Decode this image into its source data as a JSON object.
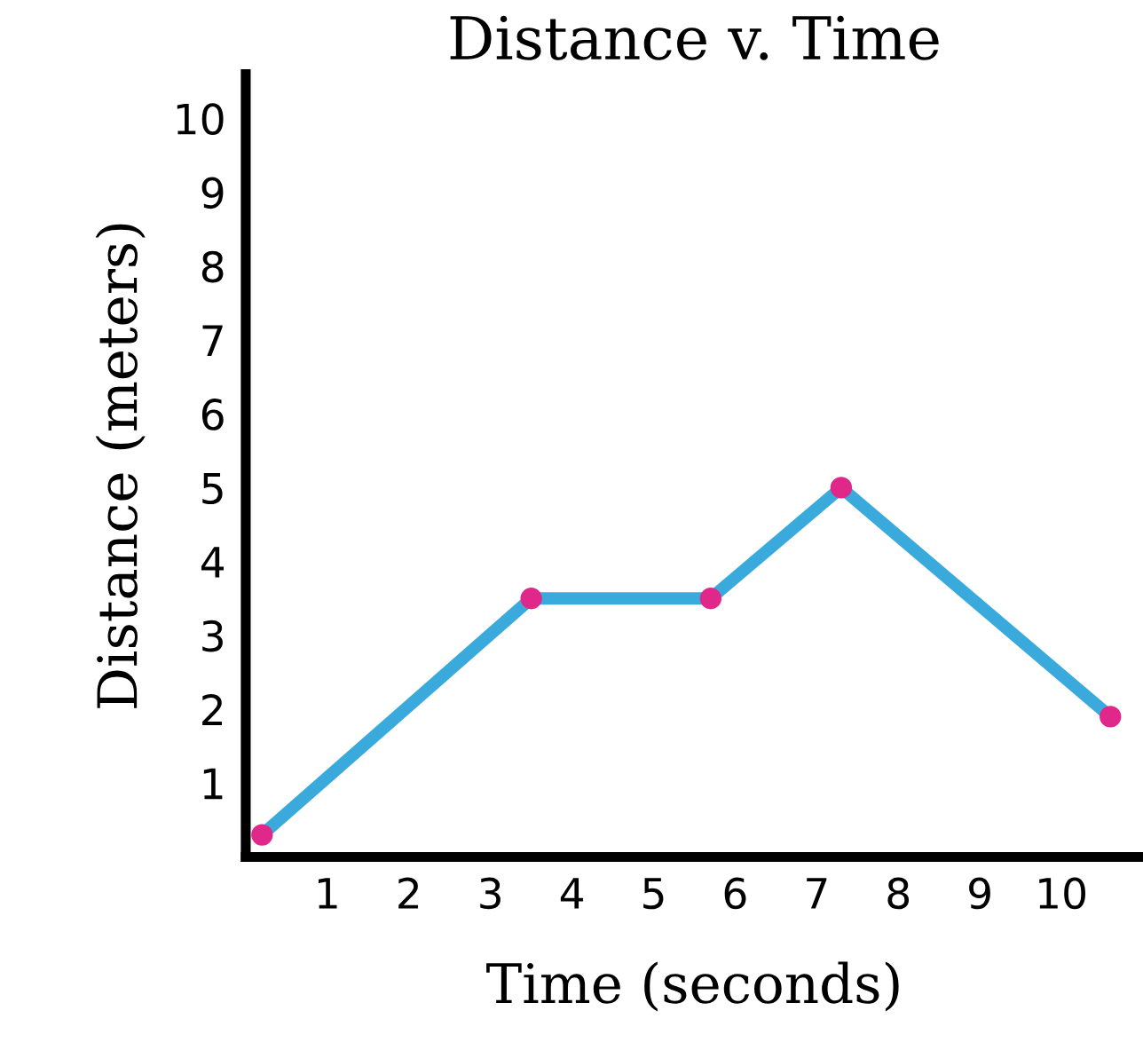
{
  "chart_data": {
    "type": "line",
    "title": "Distance v. Time",
    "xlabel": "Time (seconds)",
    "ylabel": "Distance (meters)",
    "xlim": [
      0,
      11
    ],
    "ylim": [
      0,
      10.6
    ],
    "xticks": [
      1,
      2,
      3,
      4,
      5,
      6,
      7,
      8,
      9,
      10
    ],
    "yticks": [
      1,
      2,
      3,
      4,
      5,
      6,
      7,
      8,
      9,
      10
    ],
    "grid": false,
    "legend": false,
    "series": [
      {
        "color": "#3aaadc",
        "x": [
          0.2,
          3.5,
          5.7,
          7.3,
          10.6
        ],
        "values": [
          0.3,
          3.5,
          3.5,
          5.0,
          1.9
        ]
      },
      {
        "type": "scatter",
        "color": "#e0288a",
        "x": [
          0.2,
          3.5,
          5.7,
          7.3,
          10.6
        ],
        "values": [
          0.3,
          3.5,
          3.5,
          5.0,
          1.9
        ]
      }
    ]
  }
}
